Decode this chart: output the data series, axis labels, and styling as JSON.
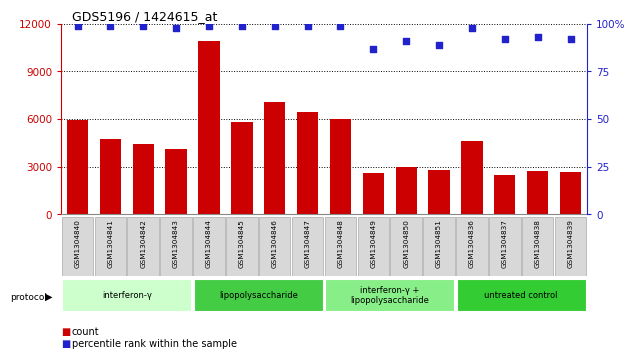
{
  "title": "GDS5196 / 1424615_at",
  "samples": [
    "GSM1304840",
    "GSM1304841",
    "GSM1304842",
    "GSM1304843",
    "GSM1304844",
    "GSM1304845",
    "GSM1304846",
    "GSM1304847",
    "GSM1304848",
    "GSM1304849",
    "GSM1304850",
    "GSM1304851",
    "GSM1304836",
    "GSM1304837",
    "GSM1304838",
    "GSM1304839"
  ],
  "counts": [
    5950,
    4750,
    4450,
    4150,
    10900,
    5800,
    7100,
    6450,
    6020,
    2580,
    3000,
    2800,
    4600,
    2480,
    2750,
    2700
  ],
  "percentile_ranks": [
    99,
    99,
    99,
    98,
    99,
    99,
    99,
    99,
    99,
    87,
    91,
    89,
    98,
    92,
    93,
    92
  ],
  "bar_color": "#cc0000",
  "dot_color": "#2222cc",
  "ylim_left": [
    0,
    12000
  ],
  "ylim_right": [
    0,
    100
  ],
  "yticks_left": [
    0,
    3000,
    6000,
    9000,
    12000
  ],
  "yticks_right": [
    0,
    25,
    50,
    75,
    100
  ],
  "yticklabels_right": [
    "0",
    "25",
    "50",
    "75",
    "100%"
  ],
  "groups": [
    {
      "label": "interferon-γ",
      "start": 0,
      "end": 4,
      "color": "#ccffcc"
    },
    {
      "label": "lipopolysaccharide",
      "start": 4,
      "end": 8,
      "color": "#44cc44"
    },
    {
      "label": "interferon-γ +\nlipopolysaccharide",
      "start": 8,
      "end": 12,
      "color": "#88ee88"
    },
    {
      "label": "untreated control",
      "start": 12,
      "end": 16,
      "color": "#33cc33"
    }
  ],
  "protocol_label": "protocol",
  "legend_count_label": "count",
  "legend_percentile_label": "percentile rank within the sample",
  "tick_bg_color": "#d8d8d8",
  "plot_bg_color": "#ffffff",
  "grid_color": "#000000"
}
